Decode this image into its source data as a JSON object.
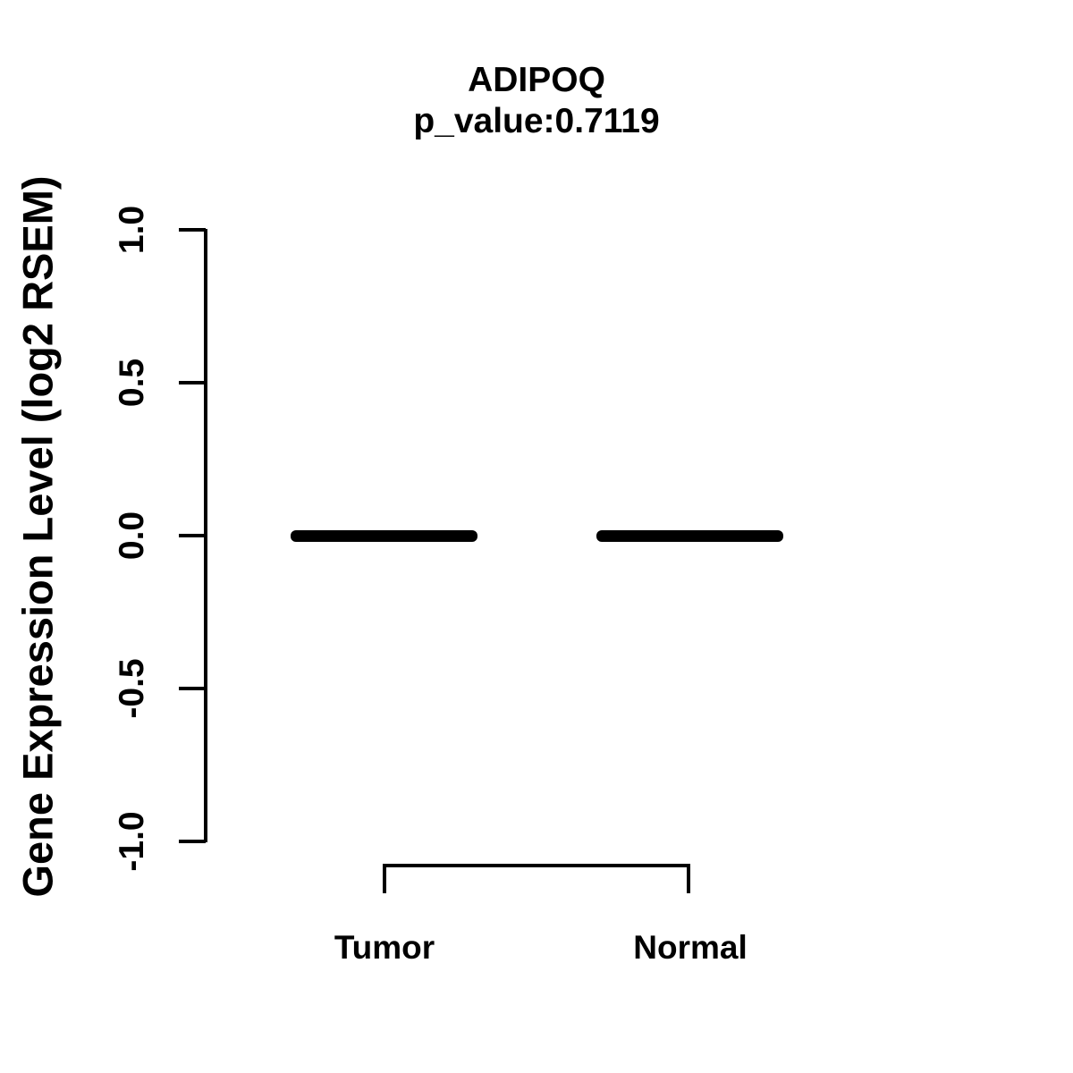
{
  "chart_data": {
    "type": "boxplot",
    "title": "ADIPOQ",
    "subtitle": "p_value:0.7119",
    "gene": "ADIPOQ",
    "p_value": 0.7119,
    "ylabel": "Gene Expression Level (log2 RSEM)",
    "xlabel": "",
    "categories": [
      "Tumor",
      "Normal"
    ],
    "series": [
      {
        "name": "Tumor",
        "median": 0.0,
        "q1": 0.0,
        "q3": 0.0,
        "whisker_low": 0.0,
        "whisker_high": 0.0
      },
      {
        "name": "Normal",
        "median": 0.0,
        "q1": 0.0,
        "q3": 0.0,
        "whisker_low": 0.0,
        "whisker_high": 0.0
      }
    ],
    "ylim": [
      -1.0,
      1.0
    ],
    "yticks": [
      1.0,
      0.5,
      0.0,
      -0.5,
      -1.0
    ],
    "ytick_labels": [
      "1.0",
      "0.5",
      "0.0",
      "-0.5",
      "-1.0"
    ],
    "grid": false,
    "legend": "none",
    "annotations": [
      "bracket connecting Tumor and Normal groups below axis"
    ],
    "colors": {
      "foreground": "#000000",
      "background": "#ffffff"
    }
  }
}
